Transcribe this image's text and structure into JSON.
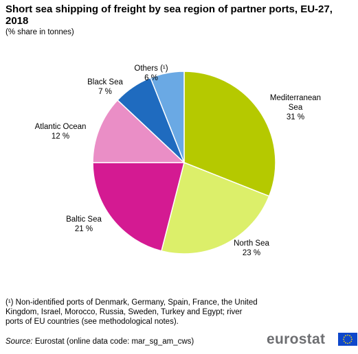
{
  "title": "Short sea shipping of freight by sea region of partner ports, EU-27, 2018",
  "subtitle": "(% share in tonnes)",
  "chart_data": {
    "type": "pie",
    "start_angle_deg": 0,
    "direction": "clockwise",
    "slices": [
      {
        "label_lines": [
          "Mediterranean",
          "Sea"
        ],
        "value": 31,
        "value_text": "31 %",
        "color": "#b5c900"
      },
      {
        "label_lines": [
          "North Sea"
        ],
        "value": 23,
        "value_text": "23 %",
        "color": "#dcef6a"
      },
      {
        "label_lines": [
          "Baltic Sea"
        ],
        "value": 21,
        "value_text": "21 %",
        "color": "#d41a92"
      },
      {
        "label_lines": [
          "Atlantic Ocean"
        ],
        "value": 12,
        "value_text": "12 %",
        "color": "#ea8ec6"
      },
      {
        "label_lines": [
          "Black Sea"
        ],
        "value": 7,
        "value_text": "7 %",
        "color": "#1f6bbf"
      },
      {
        "label_lines": [
          "Others (¹)"
        ],
        "value": 6,
        "value_text": "6 %",
        "color": "#6aa9e4"
      }
    ]
  },
  "footnote": "(¹) Non-identified  ports of Denmark,  Germany,  Spain, France, the United Kingdom, Israel, Morocco, Russia, Sweden, Turkey and Egypt; river ports of EU countries (see methodological notes).",
  "source": {
    "label": "Source:",
    "text": " Eurostat (online data code: mar_sg_am_cws)"
  },
  "logo": {
    "text": "eurostat",
    "flag_color": "#0e47cb",
    "star_color": "#ffdd00"
  }
}
